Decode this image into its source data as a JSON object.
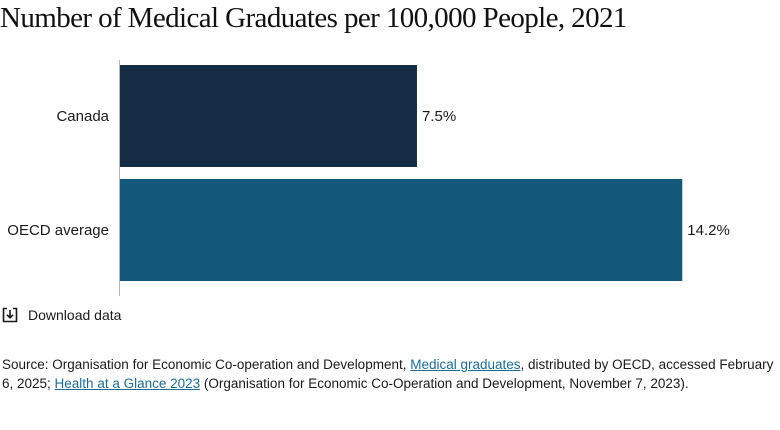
{
  "chart_data": {
    "type": "bar",
    "orientation": "horizontal",
    "title": "Number of Medical Graduates per 100,000 People, 2021",
    "categories": [
      "Canada",
      "OECD average"
    ],
    "values": [
      7.5,
      14.2
    ],
    "value_labels": [
      "7.5%",
      "14.2%"
    ],
    "colors": [
      "#172d45",
      "#13577a"
    ],
    "xlim": [
      0,
      14.9
    ],
    "grid": false,
    "legend": "none"
  },
  "download": {
    "label": "Download data",
    "icon": "download-icon"
  },
  "source": {
    "prefix": "Source: Organisation for Economic Co-operation and Development, ",
    "link1": "Medical graduates",
    "middle": ", distributed by OECD, accessed February 6, 2025; ",
    "link2": "Health at a Glance 2023",
    "suffix": " (Organisation for Economic Co-Operation and Development, November 7, 2023)."
  }
}
